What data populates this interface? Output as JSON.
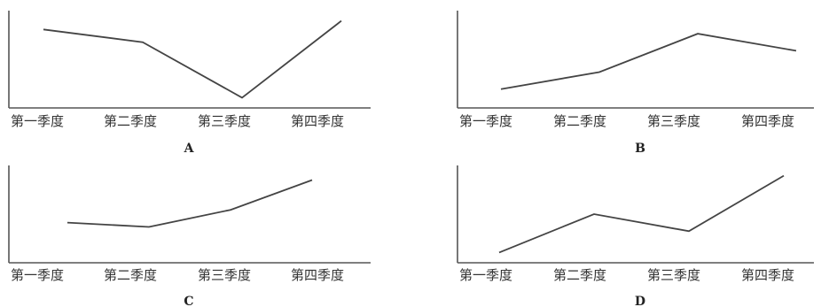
{
  "chart_data": [
    {
      "type": "line",
      "label": "A",
      "categories": [
        "第一季度",
        "第二季度",
        "第三季度",
        "第四季度"
      ],
      "values": [
        90,
        75,
        10,
        100
      ],
      "ylim": [
        0,
        110
      ],
      "grid": false,
      "axes": "left-and-bottom-only, no ticks"
    },
    {
      "type": "line",
      "label": "B",
      "categories": [
        "第一季度",
        "第二季度",
        "第三季度",
        "第四季度"
      ],
      "values": [
        20,
        40,
        85,
        65
      ],
      "ylim": [
        0,
        110
      ],
      "grid": false,
      "axes": "left-and-bottom-only, no ticks"
    },
    {
      "type": "line",
      "label": "C",
      "categories": [
        "第一季度",
        "第二季度",
        "第三季度",
        "第四季度"
      ],
      "values": [
        45,
        40,
        60,
        95
      ],
      "ylim": [
        0,
        110
      ],
      "grid": false,
      "axes": "left-and-bottom-only, no ticks"
    },
    {
      "type": "line",
      "label": "D",
      "categories": [
        "第一季度",
        "第二季度",
        "第三季度",
        "第四季度"
      ],
      "values": [
        10,
        55,
        35,
        100
      ],
      "ylim": [
        0,
        110
      ],
      "grid": false,
      "axes": "left-and-bottom-only, no ticks"
    }
  ]
}
